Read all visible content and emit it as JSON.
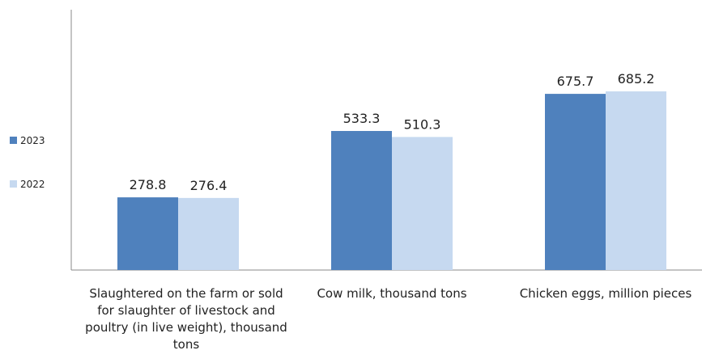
{
  "chart_data": {
    "type": "bar",
    "categories": [
      "Slaughtered on the farm or sold for slaughter of livestock and poultry (in live weight), thousand tons",
      "Cow milk, thousand tons",
      "Chicken eggs, million pieces"
    ],
    "series": [
      {
        "name": "2023",
        "values": [
          278.8,
          533.3,
          675.7
        ],
        "color": "#4f81bd"
      },
      {
        "name": "2022",
        "values": [
          276.4,
          510.3,
          685.2
        ],
        "color": "#c6d9f0"
      }
    ],
    "title": "",
    "xlabel": "",
    "ylabel": "",
    "ylim": [
      0,
      800
    ],
    "grid": false,
    "legend_position": "left"
  }
}
